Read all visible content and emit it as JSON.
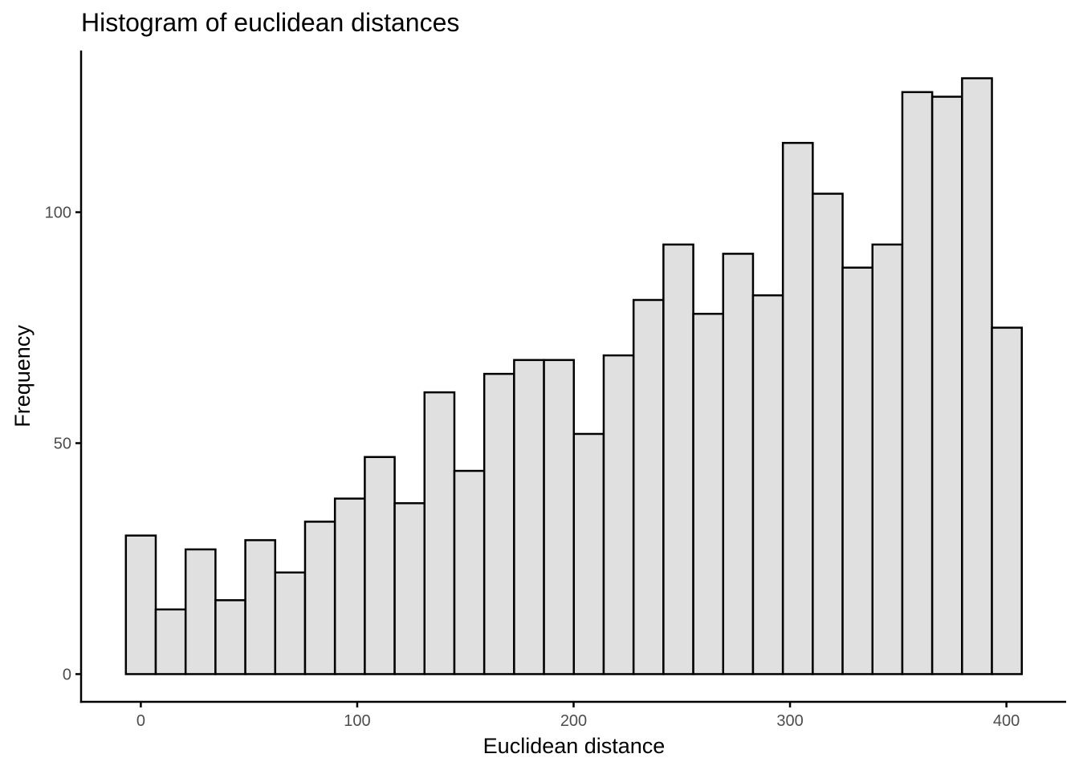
{
  "chart_data": {
    "type": "bar",
    "title": "Histogram of euclidean distances",
    "xlabel": "Euclidean distance",
    "ylabel": "Frequency",
    "bin_width": 13.8,
    "bins_start": -6.9,
    "values": [
      30,
      14,
      27,
      16,
      29,
      22,
      33,
      38,
      47,
      37,
      61,
      44,
      65,
      68,
      68,
      52,
      69,
      81,
      93,
      78,
      91,
      82,
      115,
      104,
      88,
      93,
      126,
      125,
      129,
      75
    ],
    "x_ticks": [
      0,
      100,
      200,
      300,
      400
    ],
    "x_tick_labels": [
      "0",
      "100",
      "200",
      "300",
      "400"
    ],
    "y_ticks": [
      0,
      50,
      100
    ],
    "y_tick_labels": [
      "0",
      "50",
      "100"
    ],
    "xlim": [
      -27.6,
      427.6
    ],
    "ylim": [
      -6,
      135
    ],
    "grid": false,
    "fill_color": "#e0e0e0",
    "stroke_color": "#000000"
  }
}
